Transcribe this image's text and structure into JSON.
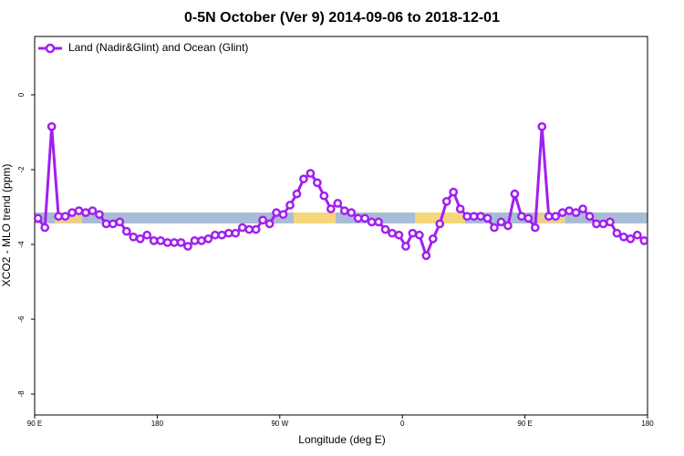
{
  "chart_data": {
    "type": "line",
    "title": "0-5N October (Ver 9)   2014-09-06 to 2018-12-01",
    "xlabel": "Longitude (deg E)",
    "ylabel": "XCO2 - MLO trend (ppm)",
    "xlim": [
      90,
      540
    ],
    "xticks": [
      {
        "value": 90,
        "label": "90 E"
      },
      180,
      {
        "value": 270,
        "label": "90 W"
      },
      {
        "value": 360,
        "label": "0"
      },
      {
        "value": 450,
        "label": "90 E"
      },
      {
        "value": 540,
        "label": "180"
      }
    ],
    "ylim": [
      -8.56,
      1.56
    ],
    "yticks": [
      0,
      -2,
      -4,
      -6,
      -8
    ],
    "grid": false,
    "legend": "top-left",
    "x": [
      92.5,
      97.5,
      102.5,
      107.5,
      112.5,
      117.5,
      122.5,
      127.5,
      132.5,
      137.5,
      142.5,
      147.5,
      152.5,
      157.5,
      162.5,
      167.5,
      172.5,
      177.5,
      182.5,
      187.5,
      192.5,
      197.5,
      202.5,
      207.5,
      212.5,
      217.5,
      222.5,
      227.5,
      232.5,
      237.5,
      242.5,
      247.5,
      252.5,
      257.5,
      262.5,
      267.5,
      272.5,
      277.5,
      282.5,
      287.5,
      292.5,
      297.5,
      302.5,
      307.5,
      312.5,
      317.5,
      322.5,
      327.5,
      332.5,
      337.5,
      342.5,
      347.5,
      352.5,
      357.5,
      362.5,
      367.5,
      372.5,
      377.5,
      382.5,
      387.5,
      392.5,
      397.5,
      402.5,
      407.5,
      412.5,
      417.5,
      422.5,
      427.5,
      432.5,
      437.5,
      442.5,
      447.5,
      452.5,
      457.5,
      462.5,
      467.5,
      472.5,
      477.5,
      482.5,
      487.5,
      492.5,
      497.5,
      502.5,
      507.5,
      512.5,
      517.5,
      522.5,
      527.5,
      532.5,
      537.5
    ],
    "series": [
      {
        "name": "Land (Nadir&Glint) and Ocean (Glint)",
        "color": "#a020f0",
        "values": [
          -3.3,
          -3.55,
          -0.85,
          -3.25,
          -3.25,
          -3.15,
          -3.1,
          -3.15,
          -3.1,
          -3.2,
          -3.45,
          -3.45,
          -3.4,
          -3.65,
          -3.8,
          -3.85,
          -3.75,
          -3.9,
          -3.9,
          -3.95,
          -3.95,
          -3.95,
          -4.05,
          -3.9,
          -3.9,
          -3.85,
          -3.75,
          -3.75,
          -3.7,
          -3.7,
          -3.55,
          -3.6,
          -3.6,
          -3.35,
          -3.45,
          -3.15,
          -3.2,
          -2.95,
          -2.65,
          -2.25,
          -2.1,
          -2.35,
          -2.7,
          -3.05,
          -2.9,
          -3.1,
          -3.15,
          -3.3,
          -3.3,
          -3.4,
          -3.4,
          -3.6,
          -3.7,
          -3.75,
          -4.05,
          -3.7,
          -3.75,
          -4.3,
          -3.85,
          -3.45,
          -2.85,
          -2.6,
          -3.05,
          -3.25,
          -3.25,
          -3.25,
          -3.3,
          -3.55,
          -3.4,
          -3.5,
          -2.65,
          -3.25,
          -3.3,
          -3.55,
          -0.85,
          -3.25,
          -3.25,
          -3.15,
          -3.1,
          -3.15,
          -3.05,
          -3.25,
          -3.45,
          -3.45,
          -3.4,
          -3.7,
          -3.8,
          -3.85,
          -3.75,
          -3.9
        ]
      }
    ]
  }
}
